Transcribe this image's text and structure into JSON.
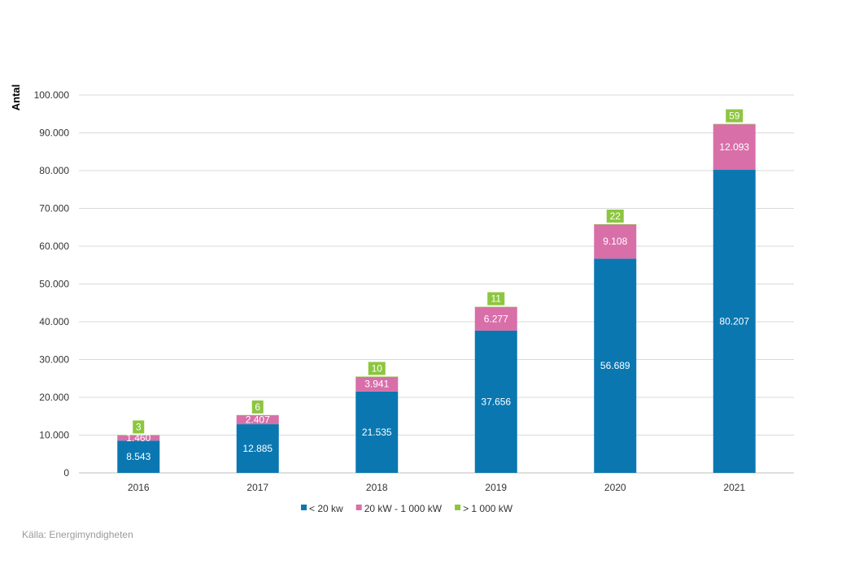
{
  "chart_data": {
    "type": "bar",
    "stacked": true,
    "ylabel": "Antal",
    "ylim": [
      0,
      100000
    ],
    "yticks": [
      0,
      10000,
      20000,
      30000,
      40000,
      50000,
      60000,
      70000,
      80000,
      90000,
      100000
    ],
    "ytick_labels": [
      "0",
      "10.000",
      "20.000",
      "30.000",
      "40.000",
      "50.000",
      "60.000",
      "70.000",
      "80.000",
      "90.000",
      "100.000"
    ],
    "grid": true,
    "legend_position": "bottom",
    "categories": [
      "2016",
      "2017",
      "2018",
      "2019",
      "2020",
      "2021"
    ],
    "series": [
      {
        "name": "< 20 kw",
        "color": "#0a77b1",
        "values": [
          8543,
          12885,
          21535,
          37656,
          56689,
          80207
        ],
        "labels": [
          "8.543",
          "12.885",
          "21.535",
          "37.656",
          "56.689",
          "80.207"
        ]
      },
      {
        "name": "20 kW - 1 000 kW",
        "color": "#d86fa9",
        "values": [
          1460,
          2407,
          3941,
          6277,
          9108,
          12093
        ],
        "labels": [
          "1.460",
          "2.407",
          "3.941",
          "6.277",
          "9.108",
          "12.093"
        ]
      },
      {
        "name": "> 1 000 kW",
        "color": "#8cc63f",
        "values": [
          3,
          6,
          10,
          11,
          22,
          59
        ],
        "labels": [
          "3",
          "6",
          "10",
          "11",
          "22",
          "59"
        ]
      }
    ]
  },
  "source_text": "Källa: Energimyndigheten"
}
